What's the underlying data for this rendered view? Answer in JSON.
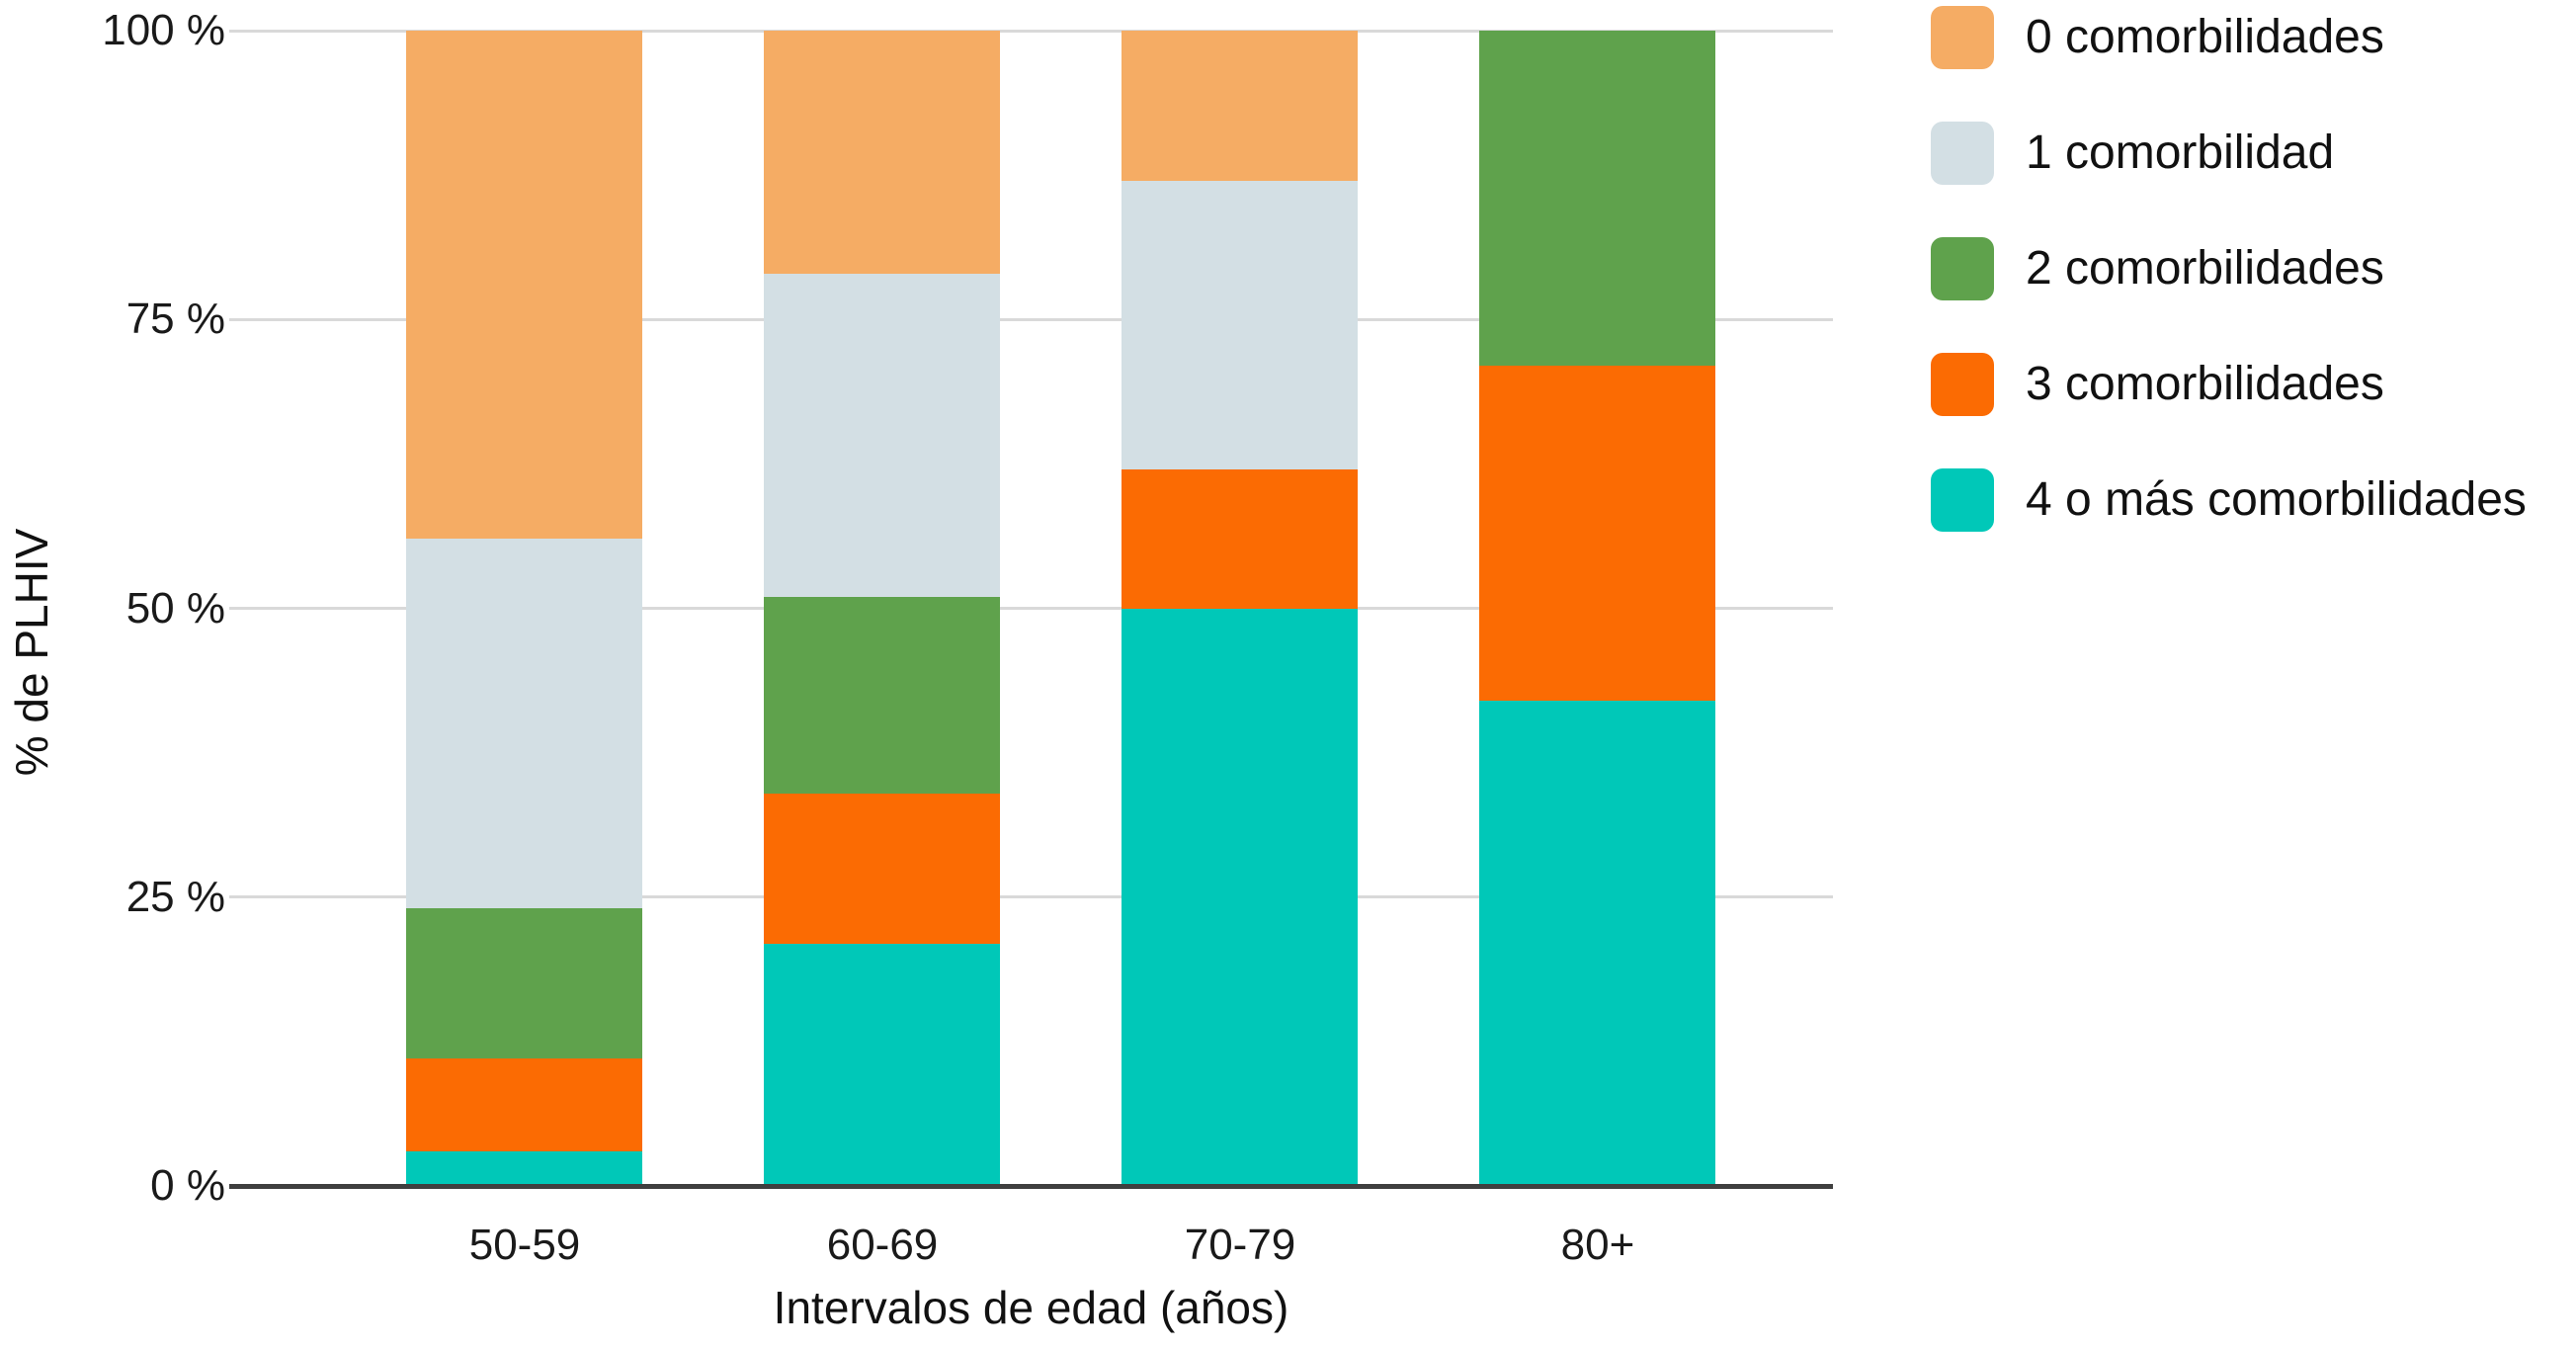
{
  "chart_data": {
    "type": "bar",
    "stacked": true,
    "title": "",
    "xlabel": "Intervalos de edad (años)",
    "ylabel": "% de PLHIV",
    "categories": [
      "50-59",
      "60-69",
      "70-79",
      "80+"
    ],
    "series": [
      {
        "name": "0 comorbilidades",
        "color": "#F5AC64",
        "values": [
          44,
          21,
          13,
          0
        ]
      },
      {
        "name": "1 comorbilidad",
        "color": "#D3DFE4",
        "values": [
          32,
          28,
          25,
          0
        ]
      },
      {
        "name": "2 comorbilidades",
        "color": "#5FA24C",
        "values": [
          13,
          17,
          0,
          29
        ]
      },
      {
        "name": "3 comorbilidades",
        "color": "#FB6B03",
        "values": [
          8,
          13,
          12,
          29
        ]
      },
      {
        "name": "4 o más comorbilidades",
        "color": "#00C8B8",
        "values": [
          3,
          21,
          50,
          42
        ]
      }
    ],
    "ylim": [
      0,
      100
    ],
    "yticks": [
      {
        "value": 0,
        "label": "0 %"
      },
      {
        "value": 25,
        "label": "25 %"
      },
      {
        "value": 50,
        "label": "50 %"
      },
      {
        "value": 75,
        "label": "75 %"
      },
      {
        "value": 100,
        "label": "100 %"
      }
    ],
    "grid": true,
    "legend_position": "right",
    "colors": {
      "gridline": "#D9D9D9",
      "axis_line": "#3F3F3F",
      "tick_text": "#1A1A1A"
    }
  }
}
